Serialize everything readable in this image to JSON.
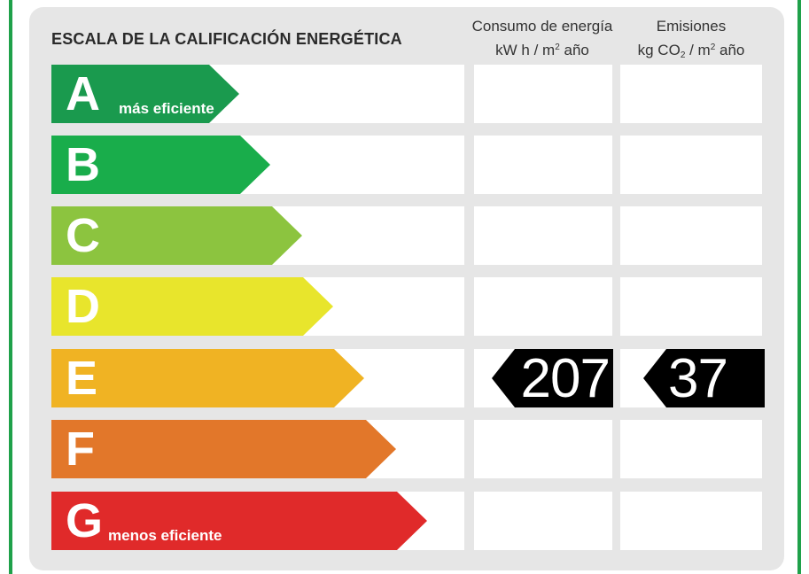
{
  "title": "ESCALA DE LA CALIFICACIÓN ENERGÉTICA",
  "columns": {
    "energy": {
      "line1": "Consumo de energía",
      "line2_pre": "kW h  / m",
      "line2_sup": "2",
      "line2_post": " año"
    },
    "emissions": {
      "line1": "Emisiones",
      "line2_pre": "kg CO",
      "line2_sub": "2",
      "line2_mid": "  / m",
      "line2_sup": "2",
      "line2_post": " año"
    }
  },
  "grades": [
    {
      "letter": "A",
      "note": "más eficiente",
      "color": "#1a9a4e"
    },
    {
      "letter": "B",
      "note": "",
      "color": "#19ad4b"
    },
    {
      "letter": "C",
      "note": "",
      "color": "#8cc43f"
    },
    {
      "letter": "D",
      "note": "",
      "color": "#e8e52c"
    },
    {
      "letter": "E",
      "note": "",
      "color": "#f0b323"
    },
    {
      "letter": "F",
      "note": "",
      "color": "#e2772a"
    },
    {
      "letter": "G",
      "note": "menos eficiente",
      "color": "#e02a2a"
    }
  ],
  "rating": {
    "grade": "E",
    "energy_value": "207",
    "emissions_value": "37"
  }
}
